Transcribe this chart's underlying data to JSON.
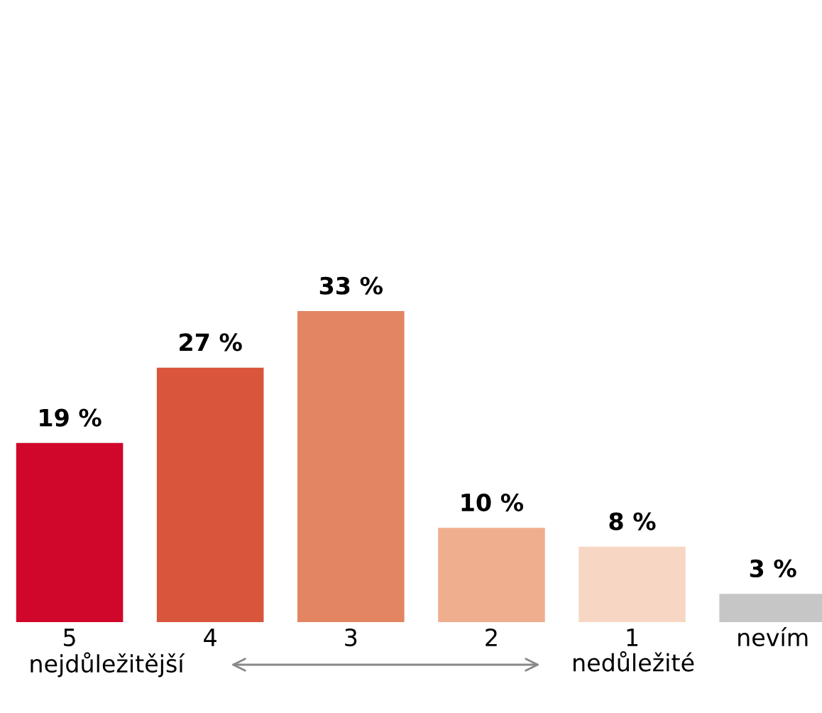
{
  "chart_data": {
    "type": "bar",
    "categories": [
      "5",
      "4",
      "3",
      "2",
      "1",
      "nevím"
    ],
    "values": [
      19,
      27,
      33,
      10,
      8,
      3
    ],
    "colors": [
      "#d0062a",
      "#d9553c",
      "#e38562",
      "#efaf8e",
      "#f7d7c4",
      "#c6c6c6"
    ],
    "value_labels": [
      "19 %",
      "27 %",
      "33 %",
      "10 %",
      "8 %",
      "3 %"
    ],
    "annotations": [
      "nejdůležitější",
      "nedůležité"
    ],
    "grid": false,
    "legend": false
  }
}
